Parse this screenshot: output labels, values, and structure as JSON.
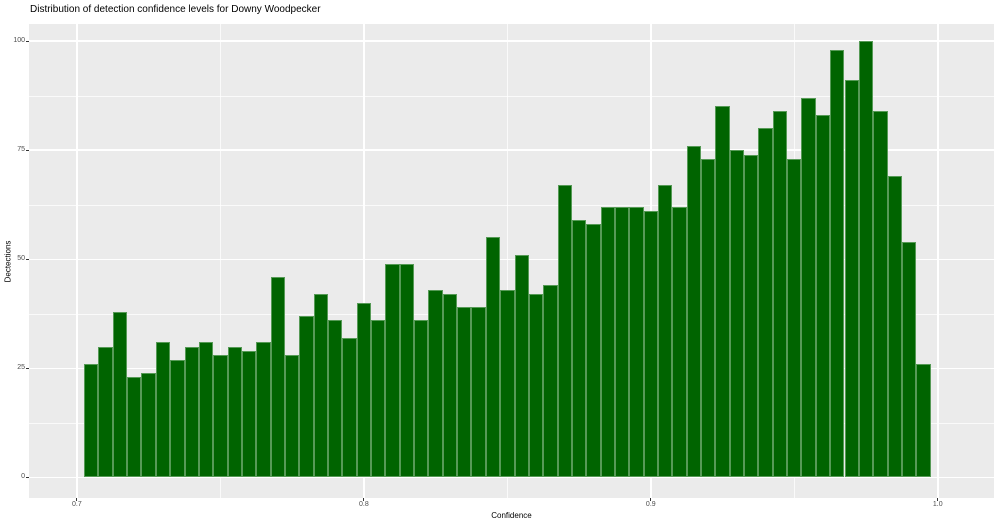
{
  "title": "Distribution of detection confidence levels for Downy Woodpecker",
  "chart_data": {
    "type": "bar",
    "subtype": "histogram",
    "title": "Distribution of detection confidence levels for Downy Woodpecker",
    "xlabel": "Confidence",
    "ylabel": "Dectections",
    "bin_start": 0.7025,
    "bin_width": 0.005,
    "values": [
      26,
      30,
      38,
      23,
      24,
      31,
      27,
      30,
      31,
      28,
      30,
      29,
      31,
      46,
      28,
      37,
      42,
      36,
      32,
      40,
      36,
      49,
      49,
      36,
      43,
      42,
      39,
      39,
      55,
      43,
      51,
      42,
      44,
      67,
      59,
      58,
      62,
      62,
      62,
      61,
      67,
      62,
      76,
      73,
      85,
      75,
      74,
      80,
      84,
      73,
      87,
      83,
      98,
      91,
      100,
      84,
      69,
      54,
      26
    ],
    "x_ticks": [
      {
        "value": 0.7,
        "label": "0.7"
      },
      {
        "value": 0.8,
        "label": "0.8"
      },
      {
        "value": 0.9,
        "label": "0.9"
      },
      {
        "value": 1.0,
        "label": "1.0"
      }
    ],
    "x_minor": [
      0.75,
      0.85,
      0.95
    ],
    "y_ticks": [
      {
        "value": 0,
        "label": "0"
      },
      {
        "value": 25,
        "label": "25"
      },
      {
        "value": 50,
        "label": "50"
      },
      {
        "value": 75,
        "label": "75"
      },
      {
        "value": 100,
        "label": "100"
      }
    ],
    "y_minor": [
      12.5,
      37.5,
      62.5,
      87.5
    ],
    "xlim": [
      0.6833,
      1.0196
    ],
    "ylim": [
      -4.7,
      103.9
    ],
    "grid": true,
    "legend": "none",
    "colors": {
      "bar_fill": "#006400",
      "bar_border": "#569a56",
      "panel_bg": "#EBEBEB",
      "grid": "#FFFFFF",
      "tick": "#333333",
      "tick_label": "#4D4D4D",
      "text": "#000000"
    }
  }
}
